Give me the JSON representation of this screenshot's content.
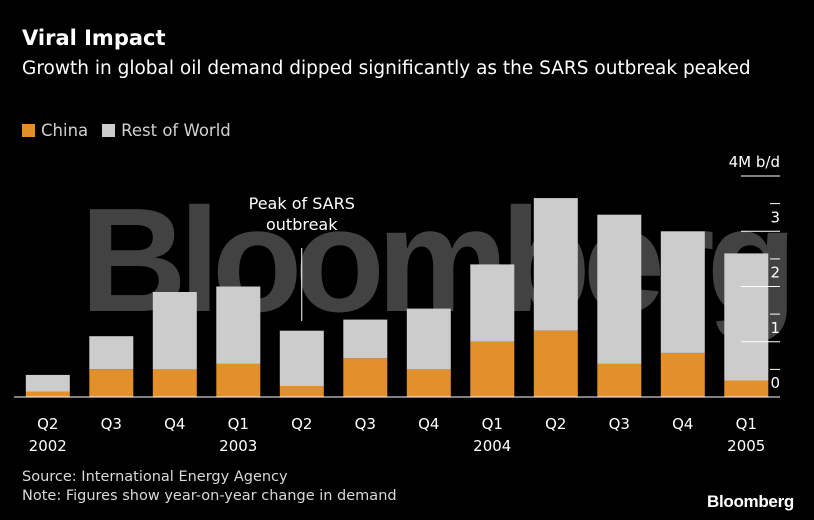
{
  "header": {
    "title": "Viral Impact",
    "subtitle": "Growth in global oil demand dipped significantly as the SARS outbreak peaked"
  },
  "legend": {
    "china": "China",
    "rest": "Rest of World"
  },
  "colors": {
    "china": "#e3902b",
    "rest": "#cccccc",
    "background": "#000000",
    "axis": "#ffffff"
  },
  "footer": {
    "source": "Source: International Energy Agency",
    "note": "Note: Figures show year-on-year change in demand"
  },
  "brand": "Bloomberg",
  "watermark": "Bloomberg",
  "chart_data": {
    "type": "bar",
    "stacked": true,
    "title": "Viral Impact",
    "unit_label": "4M b/d",
    "categories": [
      "Q2",
      "Q3",
      "Q4",
      "Q1",
      "Q2",
      "Q3",
      "Q4",
      "Q1",
      "Q2",
      "Q3",
      "Q4",
      "Q1"
    ],
    "year_labels": [
      "2002",
      "",
      "",
      "2003",
      "",
      "",
      "",
      "2004",
      "",
      "",
      "",
      "2005"
    ],
    "series": [
      {
        "name": "China",
        "values": [
          0.1,
          0.5,
          0.5,
          0.6,
          0.2,
          0.7,
          0.5,
          1.0,
          1.2,
          0.6,
          0.8,
          0.3
        ]
      },
      {
        "name": "Rest of World",
        "values": [
          0.3,
          0.6,
          1.4,
          1.4,
          1.0,
          0.7,
          1.1,
          1.4,
          2.4,
          2.7,
          2.2,
          2.3
        ]
      }
    ],
    "y_ticks": [
      0,
      1,
      2,
      3,
      4
    ],
    "y_tick_labels": [
      "0",
      "1",
      "2",
      "3",
      "4M b/d"
    ],
    "ylim": [
      0,
      4
    ],
    "annotation": {
      "text": [
        "Peak of SARS",
        "outbreak"
      ],
      "category_index": 4
    }
  }
}
